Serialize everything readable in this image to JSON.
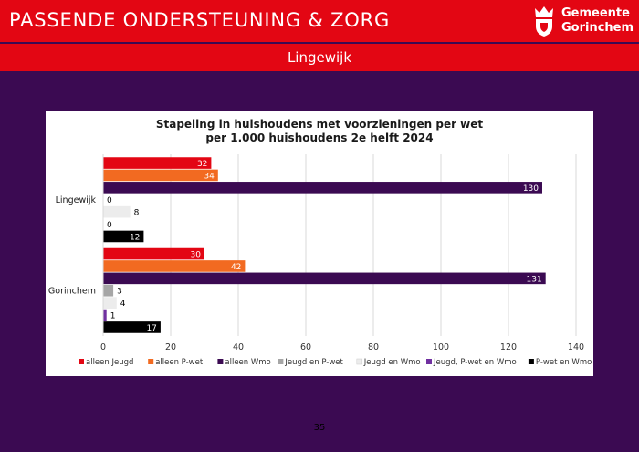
{
  "header": {
    "title": "PASSENDE ONDERSTEUNING & ZORG",
    "logo_line1": "Gemeente",
    "logo_line2": "Gorinchem"
  },
  "subheader": {
    "title": "Lingewijk"
  },
  "chart_data": {
    "type": "bar",
    "orientation": "horizontal",
    "title_lines": [
      "Stapeling in huishoudens met voorzieningen per wet",
      "per 1.000 huishoudens 2e helft 2024"
    ],
    "categories": [
      "Lingewijk",
      "Gorinchem"
    ],
    "xlim": [
      0,
      140
    ],
    "xticks": [
      0,
      20,
      40,
      60,
      80,
      100,
      120,
      140
    ],
    "grid": true,
    "legend_position": "bottom",
    "series": [
      {
        "name": "alleen Jeugd",
        "color": "#e30613",
        "values": [
          32,
          30
        ]
      },
      {
        "name": "alleen P-wet",
        "color": "#f26a21",
        "values": [
          34,
          42
        ]
      },
      {
        "name": "alleen Wmo",
        "color": "#3b0a52",
        "values": [
          130,
          131
        ]
      },
      {
        "name": "Jeugd en P-wet",
        "color": "#a6a6a6",
        "values": [
          0,
          3
        ]
      },
      {
        "name": "Jeugd en Wmo",
        "color": "#ececec",
        "values": [
          8,
          4
        ]
      },
      {
        "name": "Jeugd, P-wet en Wmo",
        "color": "#7030a0",
        "values": [
          0,
          1
        ]
      },
      {
        "name": "P-wet en Wmo",
        "color": "#000000",
        "values": [
          12,
          17
        ]
      }
    ]
  },
  "footer": {
    "page_number": "35"
  }
}
